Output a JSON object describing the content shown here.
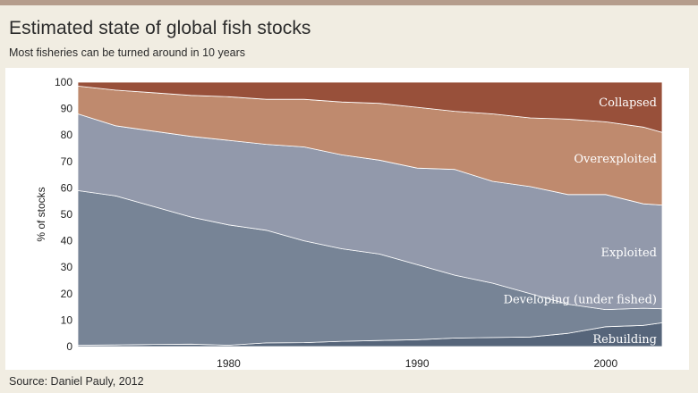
{
  "header": {
    "title": "Estimated state of global fish stocks",
    "subtitle": "Most fisheries can be turned around in 10 years"
  },
  "footer": {
    "source": "Source: Daniel Pauly, 2012"
  },
  "colors": {
    "Rebuilding": "#56657a",
    "Developing (under fished)": "#778496",
    "Exploited": "#9299ab",
    "Overexploited": "#bf8a6e",
    "Collapsed": "#98503a",
    "rule": "#b59d8c",
    "background": "#f1ede2"
  },
  "chart_data": {
    "type": "area",
    "stacked": true,
    "x": [
      1972,
      1974,
      1976,
      1978,
      1980,
      1982,
      1984,
      1986,
      1988,
      1990,
      1992,
      1994,
      1996,
      1998,
      2000,
      2002,
      2003
    ],
    "series": [
      {
        "name": "Rebuilding",
        "values": [
          0.5,
          0.6,
          0.8,
          0.9,
          0.5,
          1.4,
          1.5,
          2.0,
          2.3,
          2.6,
          3.2,
          3.4,
          3.6,
          5.0,
          7.5,
          8.0,
          9.0
        ]
      },
      {
        "name": "Developing (under fished)",
        "values": [
          58.5,
          56.4,
          52.2,
          48.1,
          45.5,
          42.6,
          38.5,
          35.0,
          32.7,
          28.4,
          23.8,
          20.6,
          16.4,
          11.0,
          6.5,
          6.5,
          5.3
        ]
      },
      {
        "name": "Exploited",
        "values": [
          29.0,
          26.5,
          28.5,
          30.5,
          32.0,
          32.5,
          35.5,
          35.5,
          35.5,
          36.5,
          40.0,
          38.5,
          40.5,
          41.5,
          43.5,
          39.5,
          39.2
        ]
      },
      {
        "name": "Overexploited",
        "values": [
          10.5,
          13.5,
          14.5,
          15.5,
          16.5,
          17.0,
          18.0,
          20.0,
          21.5,
          23.0,
          22.0,
          25.5,
          26.0,
          28.5,
          27.5,
          29.0,
          27.5
        ]
      },
      {
        "name": "Collapsed",
        "values": [
          1.5,
          3.0,
          4.0,
          5.0,
          5.5,
          6.5,
          6.5,
          7.5,
          8.0,
          9.5,
          11.0,
          12.0,
          13.5,
          14.0,
          15.0,
          17.0,
          19.0
        ]
      }
    ],
    "xticks": [
      1980,
      1990,
      2000
    ],
    "yticks": [
      0,
      10,
      20,
      30,
      40,
      50,
      60,
      70,
      80,
      90,
      100
    ],
    "xlim": [
      1972,
      2003
    ],
    "ylim": [
      0,
      100
    ],
    "xlabel": "",
    "ylabel": "% of stocks",
    "grid": false,
    "legend": "inline labels at right",
    "labels": {
      "Collapsed": "Collapsed",
      "Overexploited": "Overexploited",
      "Exploited": "Exploited",
      "Developing (under fished)": "Developing (under fished)",
      "Rebuilding": "Rebuilding"
    }
  }
}
